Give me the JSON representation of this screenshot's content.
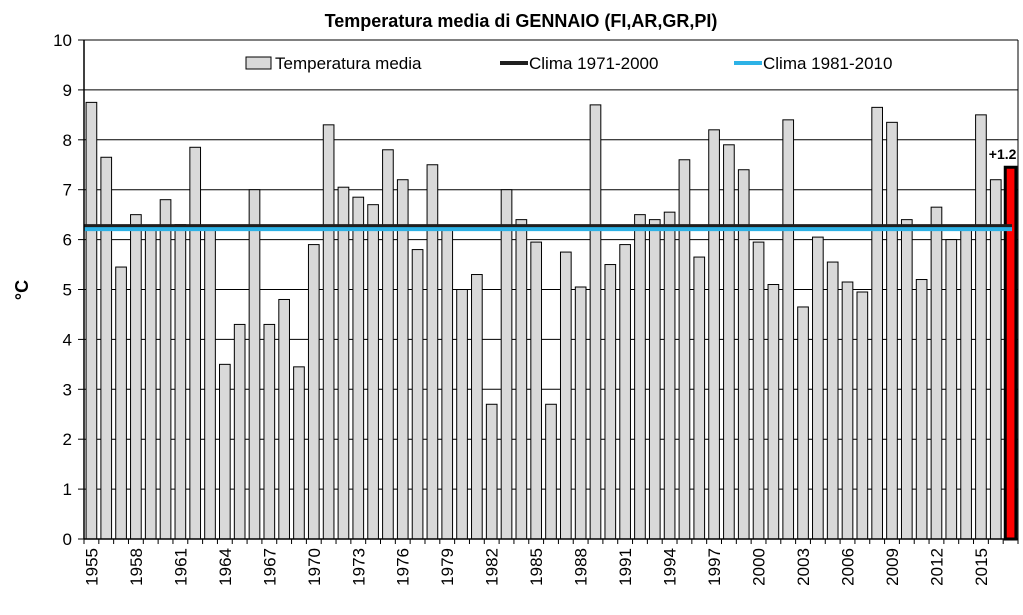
{
  "chart_data": {
    "type": "bar",
    "title": "Temperatura media di GENNAIO  (FI,AR,GR,PI)",
    "ylabel": "°C",
    "xlabel": "",
    "ylim": [
      0,
      10
    ],
    "yticks": [
      0,
      1,
      2,
      3,
      4,
      5,
      6,
      7,
      8,
      9,
      10
    ],
    "grid": "horizontal",
    "legend_position": "top",
    "categories": [
      "1955",
      "1956",
      "1957",
      "1958",
      "1959",
      "1960",
      "1961",
      "1962",
      "1963",
      "1964",
      "1965",
      "1966",
      "1967",
      "1968",
      "1969",
      "1970",
      "1971",
      "1972",
      "1973",
      "1974",
      "1975",
      "1976",
      "1977",
      "1978",
      "1979",
      "1980",
      "1981",
      "1982",
      "1983",
      "1984",
      "1985",
      "1986",
      "1987",
      "1988",
      "1989",
      "1990",
      "1991",
      "1992",
      "1993",
      "1994",
      "1995",
      "1996",
      "1997",
      "1998",
      "1999",
      "2000",
      "2001",
      "2002",
      "2003",
      "2004",
      "2005",
      "2006",
      "2007",
      "2008",
      "2009",
      "2010",
      "2011",
      "2012",
      "2013",
      "2014",
      "2015",
      "2016",
      "2017"
    ],
    "x_tick_labels": [
      "1955",
      "1958",
      "1961",
      "1964",
      "1967",
      "1970",
      "1973",
      "1976",
      "1979",
      "1982",
      "1985",
      "1988",
      "1991",
      "1994",
      "1997",
      "2000",
      "2003",
      "2006",
      "2009",
      "2012",
      "2015"
    ],
    "series": [
      {
        "name": "Temperatura media",
        "color": "#d9d9d9",
        "highlight_color": "#ff0000",
        "highlight_index": 62,
        "values": [
          8.75,
          7.65,
          5.45,
          6.5,
          6.25,
          6.8,
          6.3,
          7.85,
          6.25,
          3.5,
          4.3,
          7.0,
          4.3,
          4.8,
          3.45,
          5.9,
          8.3,
          7.05,
          6.85,
          6.7,
          7.8,
          7.2,
          5.8,
          7.5,
          6.2,
          5.0,
          5.3,
          2.7,
          7.0,
          6.4,
          5.95,
          2.7,
          5.75,
          5.05,
          8.7,
          5.5,
          5.9,
          6.5,
          6.4,
          6.55,
          7.6,
          5.65,
          8.2,
          7.9,
          7.4,
          5.95,
          5.1,
          8.4,
          4.65,
          6.05,
          5.55,
          5.15,
          4.95,
          8.65,
          8.35,
          6.4,
          5.2,
          6.65,
          6.0,
          6.25,
          8.5,
          7.2,
          7.45
        ]
      },
      {
        "name": "Clima 1971-2000",
        "type": "line",
        "color": "#1f1f1f",
        "value": 6.27
      },
      {
        "name": "Clima 1981-2010",
        "type": "line",
        "color": "#2db2e6",
        "value": 6.21
      }
    ],
    "annotations": [
      {
        "text": "+1.2",
        "index": 62
      }
    ]
  }
}
